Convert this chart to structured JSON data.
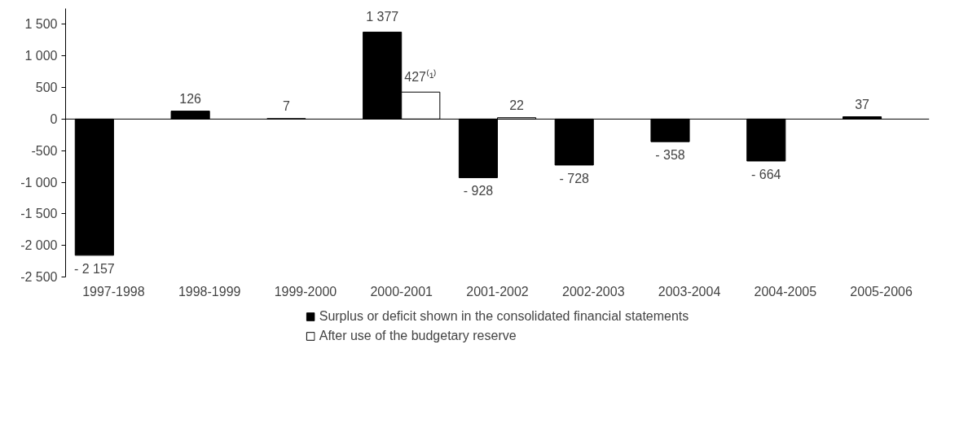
{
  "chart_data": {
    "type": "bar",
    "categories": [
      "1997-1998",
      "1998-1999",
      "1999-2000",
      "2000-2001",
      "2001-2002",
      "2002-2003",
      "2003-2004",
      "2004-2005",
      "2005-2006"
    ],
    "series": [
      {
        "name": "Surplus or deficit shown in the consolidated financial statements",
        "color": "#000000",
        "values": [
          -2157,
          126,
          7,
          1377,
          -928,
          -728,
          -358,
          -664,
          37
        ],
        "value_labels": [
          "- 2 157",
          "126",
          "7",
          "1 377",
          "- 928",
          "- 728",
          "- 358",
          "- 664",
          "37"
        ]
      },
      {
        "name": "After use of the budgetary reserve",
        "color": "#ffffff",
        "values": [
          null,
          null,
          null,
          427,
          22,
          null,
          null,
          null,
          null
        ],
        "value_labels": [
          null,
          null,
          null,
          "427⁽¹⁾",
          "22",
          null,
          null,
          null,
          null
        ]
      }
    ],
    "ylim": [
      -2500,
      1750
    ],
    "yticks": [
      {
        "value": -2500,
        "label": "-2 500"
      },
      {
        "value": -2000,
        "label": "-2 000"
      },
      {
        "value": -1500,
        "label": "-1 500"
      },
      {
        "value": -1000,
        "label": "-1 000"
      },
      {
        "value": -500,
        "label": "-500"
      },
      0,
      500,
      {
        "value": 1000,
        "label": "1 000"
      },
      {
        "value": 1500,
        "label": "1 500"
      }
    ],
    "legend": "bottom"
  }
}
